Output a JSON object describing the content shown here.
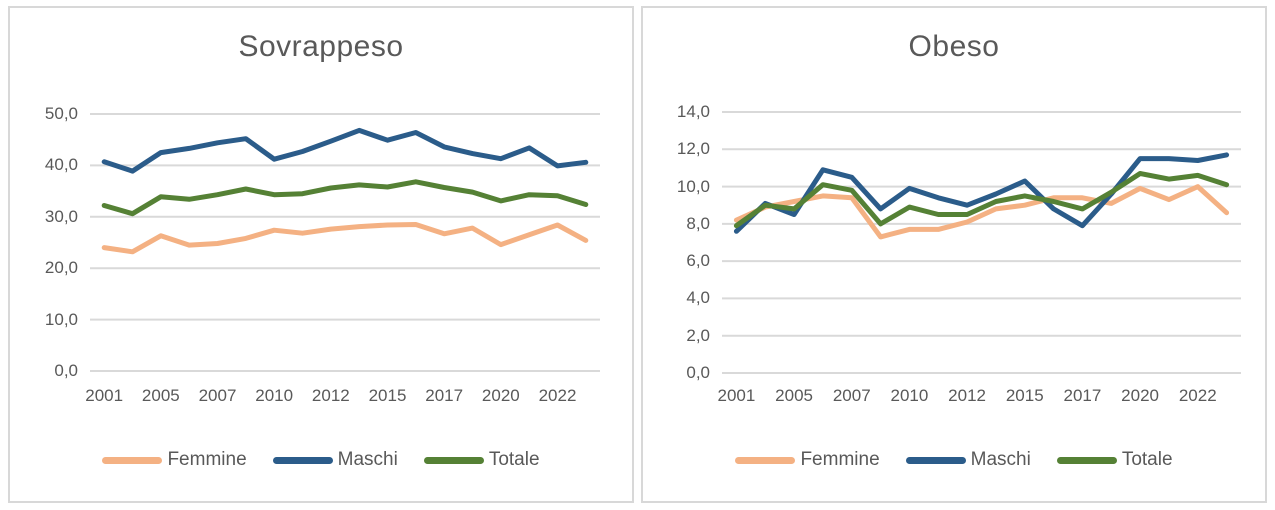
{
  "styles": {
    "background": "#FFFFFF",
    "panel_border_color": "#D8D8D8",
    "gridline_color": "#D9D9D9",
    "text_color": "#595959",
    "series_colors": {
      "femmine": "#F4B183",
      "maschi": "#2B5C8A",
      "totale": "#558135"
    }
  },
  "chart_data": [
    {
      "type": "line",
      "title": "Sovrappeso",
      "xlabel": "",
      "ylabel": "",
      "ylim": [
        0,
        50
      ],
      "ytick_step": 10,
      "y_tick_labels": [
        "0,0",
        "10,0",
        "20,0",
        "30,0",
        "40,0",
        "50,0"
      ],
      "x_tick_labels": [
        "2001",
        "2005",
        "2007",
        "2010",
        "2012",
        "2015",
        "2017",
        "2020",
        "2022"
      ],
      "x_tick_positions": [
        0,
        2,
        4,
        6,
        8,
        10,
        12,
        14,
        16
      ],
      "points_per_series": 18,
      "grid": true,
      "legend_position": "bottom",
      "series": [
        {
          "name": "Femmine",
          "color": "#F4B183",
          "values": [
            24.0,
            23.2,
            26.3,
            24.5,
            24.8,
            25.8,
            27.4,
            26.8,
            27.6,
            28.1,
            28.4,
            28.5,
            26.7,
            27.8,
            24.6,
            26.5,
            28.4,
            25.4
          ]
        },
        {
          "name": "Maschi",
          "color": "#2B5C8A",
          "values": [
            40.7,
            38.9,
            42.5,
            43.3,
            44.4,
            45.2,
            41.2,
            42.7,
            44.7,
            46.8,
            44.9,
            46.4,
            43.6,
            42.3,
            41.3,
            43.4,
            39.9,
            40.6
          ]
        },
        {
          "name": "Totale",
          "color": "#558135",
          "values": [
            32.2,
            30.6,
            33.9,
            33.4,
            34.3,
            35.4,
            34.3,
            34.5,
            35.6,
            36.2,
            35.8,
            36.8,
            35.7,
            34.8,
            33.1,
            34.3,
            34.1,
            32.4
          ]
        }
      ]
    },
    {
      "type": "line",
      "title": "Obeso",
      "xlabel": "",
      "ylabel": "",
      "ylim": [
        0,
        14
      ],
      "ytick_step": 2,
      "y_tick_labels": [
        "0,0",
        "2,0",
        "4,0",
        "6,0",
        "8,0",
        "10,0",
        "12,0",
        "14,0"
      ],
      "x_tick_labels": [
        "2001",
        "2005",
        "2007",
        "2010",
        "2012",
        "2015",
        "2017",
        "2020",
        "2022"
      ],
      "x_tick_positions": [
        0,
        2,
        4,
        6,
        8,
        10,
        12,
        14,
        16
      ],
      "points_per_series": 18,
      "grid": true,
      "legend_position": "bottom",
      "series": [
        {
          "name": "Femmine",
          "color": "#F4B183",
          "values": [
            8.2,
            8.9,
            9.2,
            9.5,
            9.4,
            7.3,
            7.7,
            7.7,
            8.1,
            8.8,
            9.0,
            9.4,
            9.4,
            9.1,
            9.9,
            9.3,
            10.0,
            8.6
          ]
        },
        {
          "name": "Maschi",
          "color": "#2B5C8A",
          "values": [
            7.6,
            9.1,
            8.5,
            10.9,
            10.5,
            8.8,
            9.9,
            9.4,
            9.0,
            9.6,
            10.3,
            8.8,
            7.9,
            9.6,
            11.5,
            11.5,
            11.4,
            11.7
          ]
        },
        {
          "name": "Totale",
          "color": "#558135",
          "values": [
            7.9,
            9.0,
            8.8,
            10.1,
            9.8,
            8.0,
            8.9,
            8.5,
            8.5,
            9.2,
            9.5,
            9.2,
            8.8,
            9.7,
            10.7,
            10.4,
            10.6,
            10.1
          ]
        }
      ]
    }
  ]
}
